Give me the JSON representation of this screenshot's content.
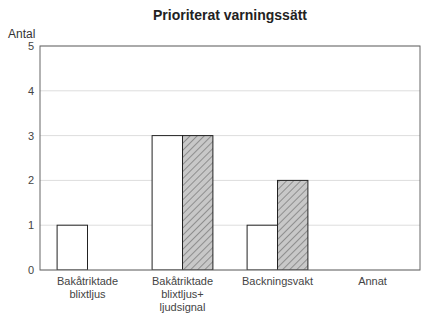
{
  "chart_data": {
    "type": "bar",
    "title": "Prioriterat varningssätt",
    "ylabel": "Antal",
    "categories": [
      "Bakåtriktade\nblixtljus",
      "Bakåtriktade\nblixtljus+\nljudsignal",
      "Backningsvakt",
      "Annat"
    ],
    "series": [
      {
        "color": "#ffffff",
        "values": [
          1,
          3,
          1,
          0
        ]
      },
      {
        "color": "#c8c8c8",
        "values": [
          0,
          3,
          2,
          0
        ]
      }
    ],
    "ylim": [
      0,
      5
    ],
    "yticks": [
      0,
      1,
      2,
      3,
      4,
      5
    ],
    "grid": true
  }
}
